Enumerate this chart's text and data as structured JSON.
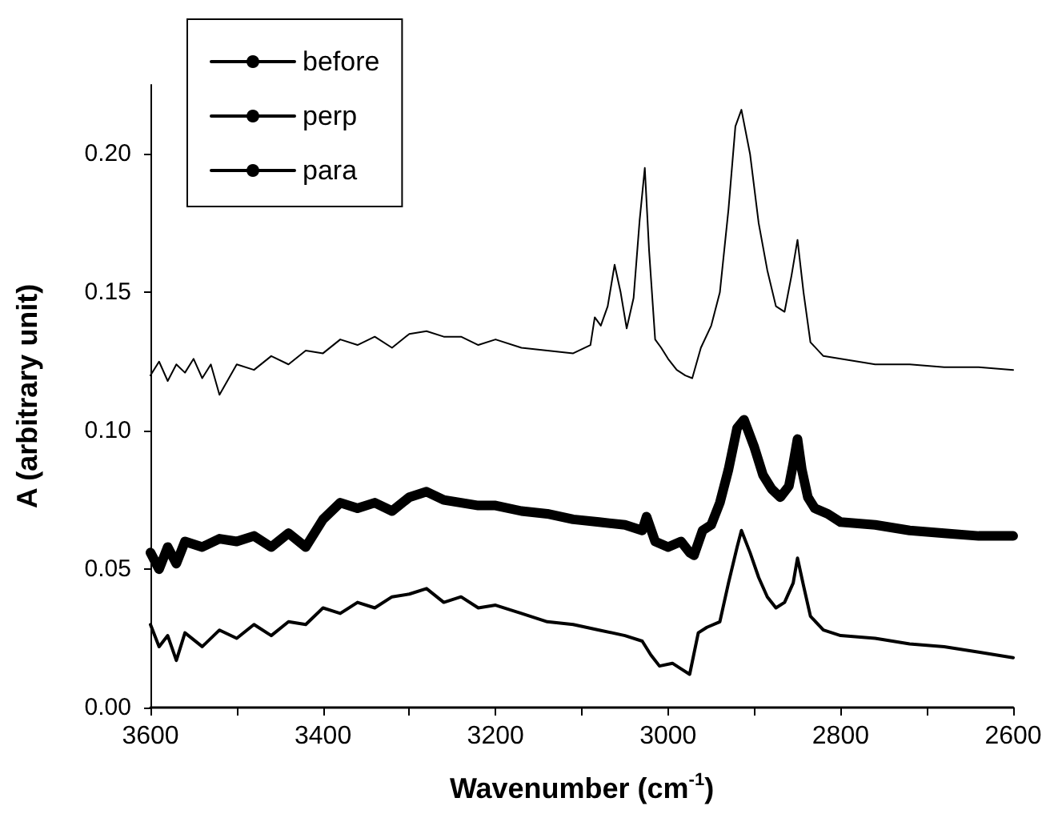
{
  "chart_data": {
    "type": "line",
    "xlabel": "Wavenumber (cm$^{-1}$)",
    "ylabel": "A (arbitrary unit)",
    "xlim": [
      3600,
      2600
    ],
    "ylim": [
      0,
      0.225
    ],
    "xticks": [
      3600,
      {
        "value": 3500,
        "label": null
      },
      3400,
      {
        "value": 3300,
        "label": null
      },
      3200,
      {
        "value": 3100,
        "label": null
      },
      3000,
      {
        "value": 2900,
        "label": null
      },
      2800,
      {
        "value": 2700,
        "label": null
      },
      2600
    ],
    "yticks": [
      {
        "value": 0,
        "label": "0.00"
      },
      {
        "value": 0.05,
        "label": "0.05"
      },
      {
        "value": 0.1,
        "label": "0.10"
      },
      {
        "value": 0.15,
        "label": "0.15"
      },
      {
        "value": 0.2,
        "label": "0.20"
      }
    ],
    "legend": "top left",
    "grid": false,
    "marker": "none",
    "line_style": "solid",
    "series": [
      {
        "name": "before",
        "color": "#000000",
        "x": [
          3600,
          3590,
          3580,
          3570,
          3560,
          3540,
          3520,
          3500,
          3480,
          3460,
          3440,
          3420,
          3400,
          3380,
          3360,
          3340,
          3320,
          3300,
          3280,
          3260,
          3240,
          3220,
          3200,
          3170,
          3140,
          3110,
          3080,
          3050,
          3030,
          3020,
          3010,
          2995,
          2985,
          2975,
          2965,
          2955,
          2940,
          2930,
          2920,
          2915,
          2905,
          2895,
          2885,
          2875,
          2865,
          2855,
          2850,
          2843,
          2835,
          2820,
          2800,
          2760,
          2720,
          2680,
          2640,
          2600
        ],
        "values": [
          0.03,
          0.022,
          0.026,
          0.017,
          0.027,
          0.022,
          0.028,
          0.025,
          0.03,
          0.026,
          0.031,
          0.03,
          0.036,
          0.034,
          0.038,
          0.036,
          0.04,
          0.041,
          0.043,
          0.038,
          0.04,
          0.036,
          0.037,
          0.034,
          0.031,
          0.03,
          0.028,
          0.026,
          0.024,
          0.019,
          0.015,
          0.016,
          0.014,
          0.012,
          0.027,
          0.029,
          0.031,
          0.045,
          0.058,
          0.064,
          0.056,
          0.047,
          0.04,
          0.036,
          0.038,
          0.045,
          0.054,
          0.044,
          0.033,
          0.028,
          0.026,
          0.025,
          0.023,
          0.022,
          0.02,
          0.018
        ]
      },
      {
        "name": "perp",
        "color": "#000000",
        "x": [
          3600,
          3590,
          3580,
          3570,
          3560,
          3550,
          3540,
          3530,
          3520,
          3500,
          3480,
          3460,
          3440,
          3420,
          3400,
          3380,
          3360,
          3340,
          3320,
          3300,
          3280,
          3260,
          3240,
          3220,
          3200,
          3170,
          3140,
          3110,
          3090,
          3085,
          3078,
          3070,
          3062,
          3055,
          3048,
          3040,
          3033,
          3027,
          3022,
          3015,
          3008,
          3000,
          2990,
          2980,
          2972,
          2962,
          2950,
          2940,
          2930,
          2922,
          2915,
          2905,
          2895,
          2885,
          2875,
          2865,
          2857,
          2850,
          2843,
          2835,
          2820,
          2800,
          2760,
          2720,
          2680,
          2640,
          2600
        ],
        "values": [
          0.12,
          0.125,
          0.118,
          0.124,
          0.121,
          0.126,
          0.119,
          0.124,
          0.113,
          0.124,
          0.122,
          0.127,
          0.124,
          0.129,
          0.128,
          0.133,
          0.131,
          0.134,
          0.13,
          0.135,
          0.136,
          0.134,
          0.134,
          0.131,
          0.133,
          0.13,
          0.129,
          0.128,
          0.131,
          0.141,
          0.138,
          0.145,
          0.16,
          0.15,
          0.137,
          0.148,
          0.176,
          0.195,
          0.165,
          0.133,
          0.13,
          0.126,
          0.122,
          0.12,
          0.119,
          0.13,
          0.138,
          0.15,
          0.18,
          0.21,
          0.216,
          0.2,
          0.175,
          0.158,
          0.145,
          0.143,
          0.156,
          0.169,
          0.15,
          0.132,
          0.127,
          0.126,
          0.124,
          0.124,
          0.123,
          0.123,
          0.122
        ]
      },
      {
        "name": "para",
        "color": "#000000",
        "x": [
          3600,
          3590,
          3580,
          3570,
          3560,
          3540,
          3520,
          3500,
          3480,
          3460,
          3440,
          3420,
          3400,
          3380,
          3360,
          3340,
          3320,
          3300,
          3280,
          3260,
          3240,
          3220,
          3200,
          3170,
          3140,
          3110,
          3080,
          3050,
          3030,
          3025,
          3015,
          3000,
          2985,
          2975,
          2970,
          2960,
          2950,
          2940,
          2930,
          2920,
          2912,
          2900,
          2890,
          2880,
          2870,
          2860,
          2855,
          2850,
          2845,
          2838,
          2830,
          2815,
          2800,
          2760,
          2720,
          2680,
          2640,
          2600
        ],
        "values": [
          0.056,
          0.05,
          0.058,
          0.052,
          0.06,
          0.058,
          0.061,
          0.06,
          0.062,
          0.058,
          0.063,
          0.058,
          0.068,
          0.074,
          0.072,
          0.074,
          0.071,
          0.076,
          0.078,
          0.075,
          0.074,
          0.073,
          0.073,
          0.071,
          0.07,
          0.068,
          0.067,
          0.066,
          0.064,
          0.069,
          0.06,
          0.058,
          0.06,
          0.056,
          0.055,
          0.064,
          0.066,
          0.074,
          0.086,
          0.101,
          0.104,
          0.094,
          0.084,
          0.079,
          0.076,
          0.08,
          0.088,
          0.097,
          0.086,
          0.076,
          0.072,
          0.07,
          0.067,
          0.066,
          0.064,
          0.063,
          0.062,
          0.062
        ]
      }
    ]
  }
}
